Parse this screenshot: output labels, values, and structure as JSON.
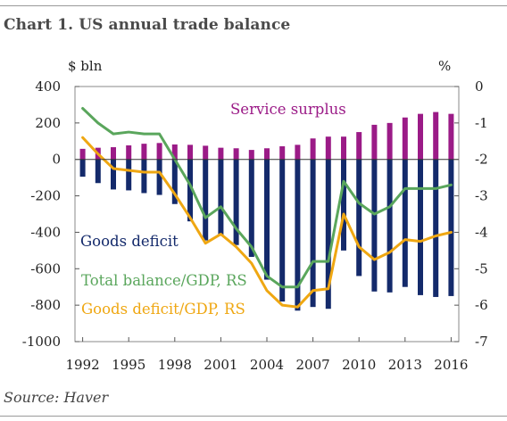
{
  "page": {
    "title": "Chart 1. US annual trade balance",
    "source": "Source: Haver"
  },
  "chart_data": {
    "type": "bar",
    "title": "Chart 1. US annual trade balance",
    "left_axis_unit": "$ bln",
    "right_axis_unit": "%",
    "ylim_left": [
      -1000,
      400
    ],
    "yticks_left": [
      400,
      200,
      0,
      -200,
      -400,
      -600,
      -800,
      -1000
    ],
    "ylim_right": [
      -7,
      0
    ],
    "yticks_right": [
      0,
      -1,
      -2,
      -3,
      -4,
      -5,
      -6,
      -7
    ],
    "xtick_labels": [
      "1992",
      "1995",
      "1998",
      "2001",
      "2004",
      "2007",
      "2010",
      "2013",
      "2016"
    ],
    "years": [
      1992,
      1993,
      1994,
      1995,
      1996,
      1997,
      1998,
      1999,
      2000,
      2001,
      2002,
      2003,
      2004,
      2005,
      2006,
      2007,
      2008,
      2009,
      2010,
      2011,
      2012,
      2013,
      2014,
      2015,
      2016
    ],
    "grid": false,
    "series": [
      {
        "name": "Service surplus",
        "kind": "bar",
        "axis": "left",
        "color": "#9b1b87",
        "values": [
          58,
          64,
          67,
          77,
          86,
          90,
          82,
          80,
          75,
          64,
          61,
          52,
          61,
          72,
          80,
          115,
          125,
          125,
          150,
          190,
          200,
          230,
          250,
          260,
          250
        ]
      },
      {
        "name": "Goods deficit",
        "kind": "bar",
        "axis": "left",
        "color": "#142a6b",
        "values": [
          -95,
          -130,
          -165,
          -170,
          -185,
          -195,
          -245,
          -340,
          -445,
          -420,
          -470,
          -535,
          -660,
          -780,
          -830,
          -810,
          -820,
          -500,
          -640,
          -725,
          -730,
          -700,
          -745,
          -755,
          -750
        ]
      },
      {
        "name": "Total balance/GDP, RS",
        "kind": "line",
        "axis": "right",
        "color": "#5aa65c",
        "values": [
          -0.6,
          -1.0,
          -1.3,
          -1.25,
          -1.3,
          -1.3,
          -2.0,
          -2.7,
          -3.6,
          -3.3,
          -3.9,
          -4.4,
          -5.2,
          -5.5,
          -5.5,
          -4.8,
          -4.8,
          -2.6,
          -3.2,
          -3.5,
          -3.3,
          -2.8,
          -2.8,
          -2.8,
          -2.7
        ]
      },
      {
        "name": "Goods deficit/GDP, RS",
        "kind": "line",
        "axis": "right",
        "color": "#efa712",
        "values": [
          -1.4,
          -1.85,
          -2.25,
          -2.3,
          -2.35,
          -2.35,
          -2.95,
          -3.6,
          -4.3,
          -4.05,
          -4.4,
          -4.85,
          -5.6,
          -6.0,
          -6.05,
          -5.6,
          -5.55,
          -3.5,
          -4.4,
          -4.75,
          -4.55,
          -4.2,
          -4.25,
          -4.1,
          -4.0
        ]
      }
    ],
    "annotations": [
      {
        "text": "Service surplus",
        "color": "#9b1b87"
      },
      {
        "text": "Goods deficit",
        "color": "#142a6b"
      },
      {
        "text": "Total balance/GDP, RS",
        "color": "#5aa65c"
      },
      {
        "text": "Goods deficit/GDP, RS",
        "color": "#efa712"
      }
    ]
  }
}
